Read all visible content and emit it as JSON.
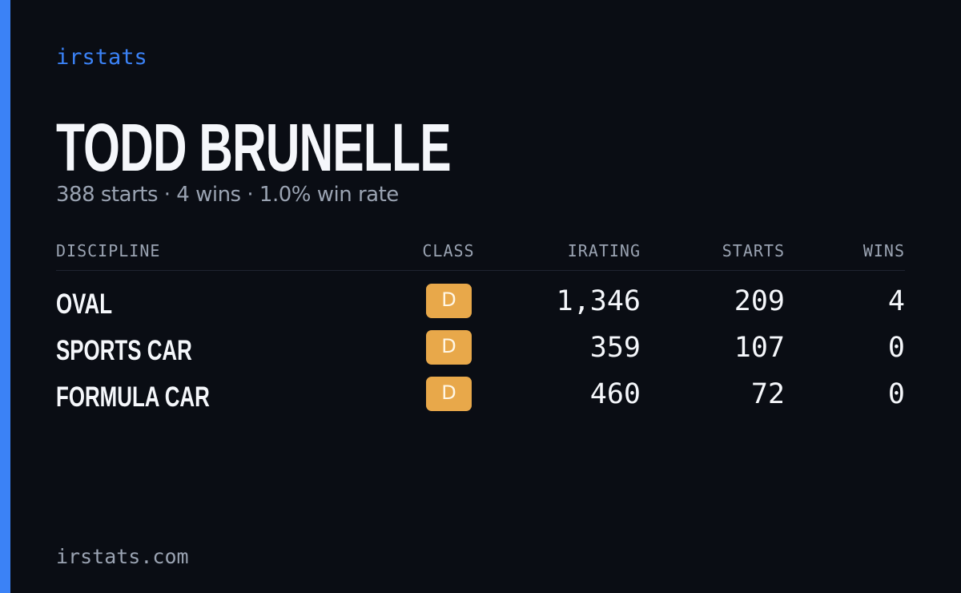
{
  "brand": "irstats",
  "driver": {
    "name": "TODD BRUNELLE",
    "summary": "388 starts · 4 wins · 1.0% win rate"
  },
  "table": {
    "headers": [
      "DISCIPLINE",
      "CLASS",
      "IRATING",
      "STARTS",
      "WINS"
    ],
    "rows": [
      [
        "OVAL",
        "D",
        "1,346",
        "209",
        "4"
      ],
      [
        "SPORTS CAR",
        "D",
        "359",
        "107",
        "0"
      ],
      [
        "FORMULA CAR",
        "D",
        "460",
        "72",
        "0"
      ]
    ]
  },
  "footer": "irstats.com"
}
